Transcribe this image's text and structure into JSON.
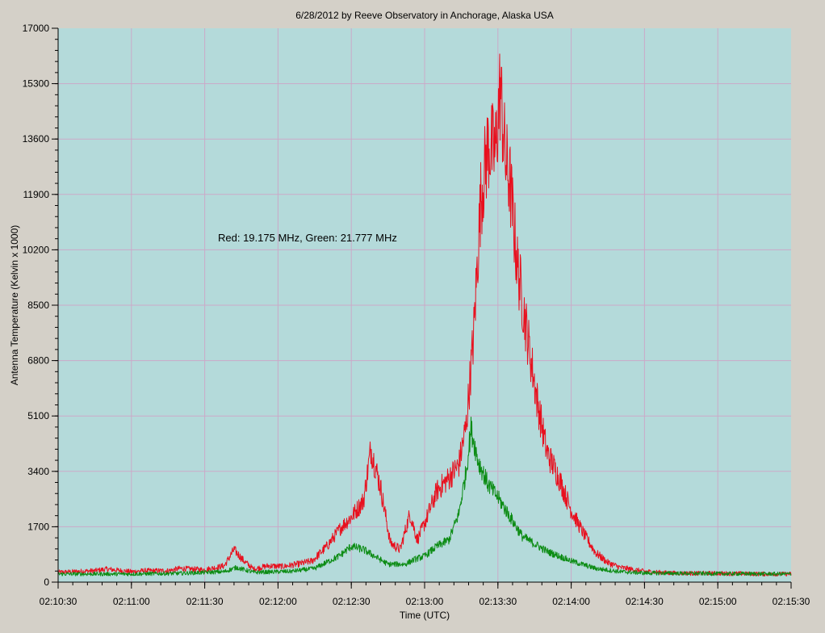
{
  "chart_data": {
    "type": "line",
    "title": "6/28/2012  by  Reeve Observatory  in  Anchorage, Alaska  USA",
    "xlabel": "Time (UTC)",
    "ylabel": "Antenna Temperature (Kelvin x 1000)",
    "annotation": "Red: 19.175 MHz, Green: 21.777 MHz",
    "xlim": [
      "02:10:30",
      "02:15:30"
    ],
    "ylim": [
      0,
      17000
    ],
    "x_ticks": [
      "02:10:30",
      "02:11:00",
      "02:11:30",
      "02:12:00",
      "02:12:30",
      "02:13:00",
      "02:13:30",
      "02:14:00",
      "02:14:30",
      "02:15:00",
      "02:15:30"
    ],
    "y_ticks": [
      "0",
      "1700",
      "3400",
      "5100",
      "6800",
      "8500",
      "10200",
      "11900",
      "13600",
      "15300",
      "17000"
    ],
    "grid": true,
    "background_color": "#b4dada",
    "grid_color": "#cba9c8",
    "series": [
      {
        "name": "Red: 19.175 MHz",
        "color": "#e8101e",
        "x": [
          "02:10:30",
          "02:10:45",
          "02:10:50",
          "02:11:00",
          "02:11:05",
          "02:11:15",
          "02:11:20",
          "02:11:30",
          "02:11:38",
          "02:11:42",
          "02:11:46",
          "02:11:50",
          "02:11:56",
          "02:12:02",
          "02:12:08",
          "02:12:14",
          "02:12:20",
          "02:12:26",
          "02:12:30",
          "02:12:35",
          "02:12:38",
          "02:12:42",
          "02:12:46",
          "02:12:50",
          "02:12:54",
          "02:12:57",
          "02:13:00",
          "02:13:05",
          "02:13:10",
          "02:13:14",
          "02:13:17",
          "02:13:20",
          "02:13:23",
          "02:13:26",
          "02:13:29",
          "02:13:31",
          "02:13:33",
          "02:13:35",
          "02:13:38",
          "02:13:42",
          "02:13:46",
          "02:13:50",
          "02:13:55",
          "02:14:00",
          "02:14:05",
          "02:14:10",
          "02:14:15",
          "02:14:20",
          "02:14:30",
          "02:14:40",
          "02:14:50",
          "02:15:00",
          "02:15:10",
          "02:15:20",
          "02:15:30"
        ],
        "y": [
          300,
          350,
          400,
          320,
          350,
          350,
          420,
          380,
          500,
          1000,
          650,
          400,
          500,
          480,
          550,
          650,
          1100,
          1700,
          2000,
          2500,
          4100,
          2900,
          1200,
          1000,
          2100,
          1300,
          1800,
          2800,
          3200,
          3600,
          4800,
          7500,
          11800,
          13400,
          13200,
          15200,
          13000,
          12200,
          9700,
          7600,
          5600,
          4000,
          3200,
          2200,
          1500,
          900,
          600,
          450,
          330,
          280,
          270,
          270,
          260,
          250,
          250
        ]
      },
      {
        "name": "Green: 21.777 MHz",
        "color": "#0c8c14",
        "x": [
          "02:10:30",
          "02:11:00",
          "02:11:20",
          "02:11:38",
          "02:11:43",
          "02:11:50",
          "02:12:05",
          "02:12:15",
          "02:12:25",
          "02:12:30",
          "02:12:35",
          "02:12:45",
          "02:12:52",
          "02:12:56",
          "02:13:00",
          "02:13:05",
          "02:13:10",
          "02:13:14",
          "02:13:17",
          "02:13:19",
          "02:13:22",
          "02:13:26",
          "02:13:30",
          "02:13:35",
          "02:13:40",
          "02:13:50",
          "02:14:00",
          "02:14:10",
          "02:14:20",
          "02:14:30",
          "02:15:00",
          "02:15:30"
        ],
        "y": [
          250,
          250,
          270,
          320,
          450,
          300,
          330,
          420,
          800,
          1100,
          1000,
          550,
          550,
          700,
          800,
          1100,
          1300,
          2100,
          3400,
          4700,
          3700,
          3000,
          2600,
          2000,
          1400,
          950,
          650,
          420,
          320,
          280,
          260,
          250
        ]
      }
    ]
  }
}
